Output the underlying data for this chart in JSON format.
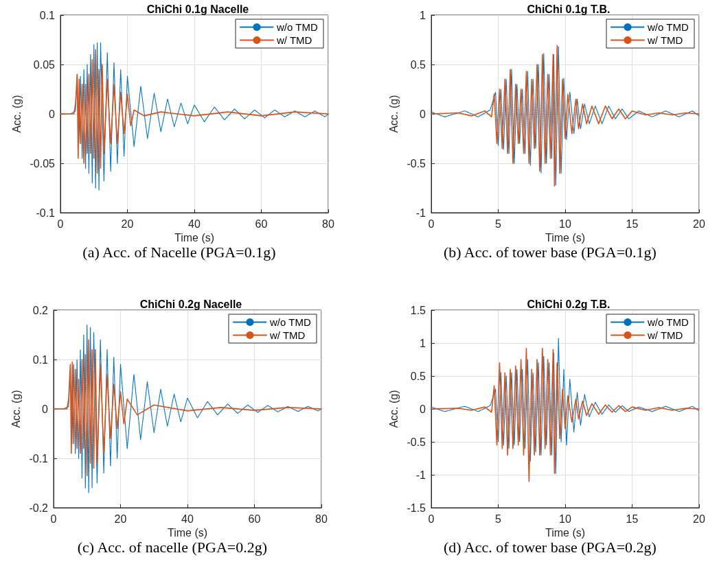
{
  "chart_data": [
    {
      "type": "line",
      "title": "ChiChi 0.1g Nacelle",
      "xlabel": "Time (s)",
      "ylabel": "Acc. (g)",
      "annotations": [
        "(a) Acc. of Nacelle (PGA=0.1g)"
      ],
      "xlim": [
        0,
        80
      ],
      "xticks": [
        0,
        20,
        40,
        60,
        80
      ],
      "ylim": [
        -0.1,
        0.1
      ],
      "yticks": [
        -0.1,
        -0.05,
        0,
        0.05,
        0.1
      ],
      "grid": true,
      "legend": "top right",
      "marker": "none",
      "series": [
        {
          "name": "w/o TMD",
          "color": "#0072bd",
          "line_style": "dotted",
          "x": [
            0,
            3,
            4.5,
            5,
            5.5,
            6,
            6.5,
            7,
            7.5,
            8,
            8.5,
            9,
            9.5,
            10,
            10.5,
            11,
            11.5,
            12,
            13,
            14,
            15,
            16,
            17,
            18,
            19,
            20,
            22,
            24,
            26,
            28,
            30,
            32,
            34,
            36,
            38,
            40,
            43,
            46,
            49,
            52,
            55,
            58,
            61,
            64,
            67,
            70,
            73,
            76,
            79,
            80
          ],
          "values": [
            0,
            0,
            0.003,
            0.04,
            -0.03,
            0.038,
            -0.045,
            0.045,
            -0.055,
            0.05,
            -0.06,
            0.06,
            -0.07,
            0.07,
            -0.075,
            0.072,
            -0.077,
            0.072,
            -0.068,
            0.062,
            -0.058,
            0.052,
            -0.05,
            0.045,
            -0.043,
            0.038,
            -0.033,
            0.028,
            -0.025,
            0.021,
            -0.018,
            0.015,
            -0.013,
            0.011,
            -0.01,
            0.009,
            -0.008,
            0.007,
            -0.006,
            0.005,
            -0.005,
            0.004,
            -0.004,
            0.004,
            -0.003,
            0.003,
            -0.003,
            0.003,
            -0.003,
            0
          ]
        },
        {
          "name": "w/ TMD",
          "color": "#d95319",
          "line_style": "solid",
          "x": [
            0,
            4,
            4.5,
            5,
            5.3,
            5.6,
            6,
            6.5,
            7,
            7.5,
            8,
            8.5,
            9,
            9.5,
            10,
            10.5,
            11,
            11.5,
            12,
            12.5,
            13,
            14,
            15,
            16,
            17,
            18,
            19,
            20,
            21,
            22,
            25,
            30,
            40,
            50,
            60,
            70,
            80
          ],
          "values": [
            0,
            0,
            0.01,
            0.04,
            -0.045,
            0.035,
            -0.03,
            0.03,
            -0.05,
            0.03,
            -0.04,
            0.04,
            -0.04,
            0.055,
            -0.045,
            0.065,
            -0.06,
            0.045,
            -0.055,
            0.05,
            -0.04,
            0.035,
            -0.03,
            0.03,
            -0.03,
            0.022,
            -0.02,
            0.02,
            -0.012,
            0.004,
            -0.002,
            0.002,
            -0.002,
            0.002,
            -0.002,
            0.002,
            0
          ]
        }
      ]
    },
    {
      "type": "line",
      "title": "ChiChi 0.1g T.B.",
      "xlabel": "Time (s)",
      "ylabel": "Acc. (g)",
      "annotations": [
        "(b) Acc. of tower base (PGA=0.1g)"
      ],
      "xlim": [
        0,
        20
      ],
      "xticks": [
        0,
        5,
        10,
        15,
        20
      ],
      "ylim": [
        -1,
        1
      ],
      "yticks": [
        -1,
        -0.5,
        0,
        0.5,
        1
      ],
      "grid": true,
      "legend": "top right",
      "marker": "none",
      "series": [
        {
          "name": "w/o TMD",
          "color": "#0072bd",
          "line_style": "dotted",
          "x": [
            0,
            1,
            2.5,
            3.5,
            4.4,
            4.8,
            5.0,
            5.2,
            5.4,
            5.6,
            5.8,
            6.0,
            6.2,
            6.4,
            6.6,
            6.8,
            7.0,
            7.2,
            7.4,
            7.6,
            7.8,
            8.0,
            8.2,
            8.4,
            8.6,
            8.8,
            9.0,
            9.15,
            9.3,
            9.5,
            9.7,
            9.9,
            10.1,
            10.35,
            10.65,
            10.9,
            11.15,
            11.45,
            11.8,
            12.25,
            12.75,
            13.25,
            13.75,
            14.25,
            14.75,
            15.5,
            16.5,
            17.5,
            18.5,
            19.5,
            20
          ],
          "values": [
            0.02,
            -0.03,
            0.03,
            -0.03,
            0.04,
            0.22,
            -0.32,
            0.25,
            -0.36,
            0.35,
            -0.4,
            0.45,
            -0.5,
            0.3,
            -0.3,
            0.25,
            -0.4,
            0.43,
            -0.52,
            0.35,
            -0.35,
            0.5,
            -0.6,
            0.61,
            -0.5,
            0.4,
            -0.45,
            0.6,
            -0.72,
            0.68,
            -0.6,
            0.36,
            -0.26,
            0.22,
            -0.2,
            0.15,
            -0.15,
            0.1,
            -0.1,
            0.08,
            -0.1,
            0.08,
            -0.05,
            0.05,
            -0.05,
            0.03,
            -0.03,
            0.03,
            -0.03,
            0.03,
            -0.02
          ]
        },
        {
          "name": "w/ TMD",
          "color": "#d95319",
          "line_style": "solid",
          "x": [
            0,
            2,
            3,
            4,
            4.5,
            4.7,
            4.9,
            5.1,
            5.3,
            5.5,
            5.7,
            5.9,
            6.1,
            6.3,
            6.5,
            6.7,
            6.9,
            7.1,
            7.3,
            7.5,
            7.7,
            7.9,
            8.1,
            8.3,
            8.5,
            8.7,
            8.9,
            9.1,
            9.2,
            9.4,
            9.6,
            9.8,
            10,
            10.2,
            10.5,
            10.8,
            11,
            11.3,
            11.6,
            12,
            12.5,
            13,
            13.5,
            14,
            14.5,
            15,
            16,
            17,
            18,
            19,
            20
          ],
          "values": [
            0,
            0.01,
            -0.02,
            0.03,
            -0.03,
            0.2,
            -0.3,
            0.25,
            -0.35,
            0.35,
            -0.4,
            0.45,
            -0.5,
            0.3,
            -0.3,
            0.25,
            -0.4,
            0.43,
            -0.5,
            0.35,
            -0.35,
            0.5,
            -0.58,
            0.6,
            -0.5,
            0.4,
            -0.45,
            0.6,
            -0.73,
            0.69,
            -0.6,
            0.35,
            -0.25,
            0.2,
            -0.2,
            0.15,
            -0.15,
            0.1,
            -0.1,
            0.08,
            -0.1,
            0.08,
            -0.05,
            0.05,
            -0.05,
            0.03,
            -0.01,
            0.01,
            -0.01,
            0.01,
            0
          ]
        }
      ]
    },
    {
      "type": "line",
      "title": "ChiChi 0.2g Nacelle",
      "xlabel": "Time (s)",
      "ylabel": "Acc. (g)",
      "annotations": [
        "(c) Acc. of nacelle (PGA=0.2g)"
      ],
      "xlim": [
        0,
        80
      ],
      "xticks": [
        0,
        20,
        40,
        60,
        80
      ],
      "ylim": [
        -0.2,
        0.2
      ],
      "yticks": [
        -0.2,
        -0.1,
        0,
        0.1,
        0.2
      ],
      "grid": true,
      "legend": "top right",
      "marker": "none",
      "series": [
        {
          "name": "w/o TMD",
          "color": "#0072bd",
          "line_style": "dotted",
          "x": [
            0,
            3,
            4.5,
            5,
            5.5,
            6,
            6.5,
            7,
            7.5,
            8,
            8.5,
            9,
            9.5,
            10,
            10.5,
            11,
            11.5,
            12,
            13,
            14,
            15,
            16,
            17,
            18,
            19,
            20,
            22,
            24,
            26,
            28,
            30,
            32,
            34,
            36,
            38,
            40,
            43,
            46,
            49,
            52,
            55,
            58,
            61,
            64,
            67,
            70,
            73,
            76,
            79,
            80
          ],
          "values": [
            0,
            0,
            0.005,
            0.08,
            -0.07,
            0.09,
            -0.09,
            0.1,
            -0.1,
            0.12,
            -0.14,
            0.15,
            -0.16,
            0.17,
            -0.17,
            0.165,
            -0.16,
            0.155,
            -0.15,
            0.14,
            -0.13,
            0.12,
            -0.115,
            0.105,
            -0.1,
            0.09,
            -0.08,
            0.07,
            -0.062,
            0.055,
            -0.048,
            0.04,
            -0.035,
            0.03,
            -0.026,
            0.022,
            -0.018,
            0.015,
            -0.012,
            0.01,
            -0.009,
            0.008,
            -0.007,
            0.007,
            -0.006,
            0.005,
            -0.005,
            0.005,
            -0.004,
            0
          ]
        },
        {
          "name": "w/ TMD",
          "color": "#d95319",
          "line_style": "solid",
          "x": [
            0,
            4,
            4.5,
            5,
            5.3,
            5.6,
            6,
            6.5,
            7,
            7.5,
            8,
            8.5,
            9,
            9.5,
            10,
            10.5,
            11,
            11.5,
            12,
            12.5,
            13,
            14,
            15,
            16,
            17,
            18,
            19,
            20,
            21,
            22,
            25,
            30,
            40,
            50,
            60,
            70,
            80
          ],
          "values": [
            0,
            0,
            0.02,
            0.09,
            -0.09,
            0.095,
            -0.07,
            0.08,
            -0.08,
            0.06,
            -0.09,
            0.1,
            -0.08,
            0.11,
            -0.135,
            0.14,
            -0.11,
            0.12,
            -0.12,
            0.12,
            -0.11,
            0.09,
            -0.09,
            0.07,
            -0.06,
            0.05,
            -0.04,
            0.035,
            -0.03,
            0.02,
            -0.012,
            0.008,
            -0.004,
            0.003,
            -0.003,
            0.003,
            0
          ]
        }
      ]
    },
    {
      "type": "line",
      "title": "ChiChi 0.2g T.B.",
      "xlabel": "Time (s)",
      "ylabel": "Acc. (g)",
      "annotations": [
        "(d) Acc. of tower base (PGA=0.2g)"
      ],
      "xlim": [
        0,
        20
      ],
      "xticks": [
        0,
        5,
        10,
        15,
        20
      ],
      "ylim": [
        -1.5,
        1.5
      ],
      "yticks": [
        -1.5,
        -1,
        -0.5,
        0,
        0.5,
        1,
        1.5
      ],
      "grid": true,
      "legend": "top right",
      "marker": "none",
      "series": [
        {
          "name": "w/o TMD",
          "color": "#0072bd",
          "line_style": "dotted",
          "x": [
            0,
            1,
            2.5,
            3.5,
            4.4,
            4.8,
            5.0,
            5.2,
            5.4,
            5.6,
            5.8,
            6.0,
            6.2,
            6.4,
            6.6,
            6.8,
            7.0,
            7.2,
            7.4,
            7.6,
            7.8,
            8.0,
            8.2,
            8.4,
            8.6,
            8.8,
            9.0,
            9.15,
            9.3,
            9.5,
            9.7,
            9.9,
            10.1,
            10.35,
            10.65,
            10.9,
            11.15,
            11.45,
            11.8,
            12.25,
            12.75,
            13.25,
            13.75,
            14.25,
            14.75,
            15.5,
            16.5,
            17.5,
            18.5,
            19.5,
            20
          ],
          "values": [
            0.03,
            -0.04,
            0.04,
            -0.04,
            0.05,
            0.3,
            -0.5,
            0.55,
            -0.55,
            0.5,
            -0.6,
            0.55,
            -0.55,
            0.6,
            -0.5,
            0.6,
            -0.6,
            0.75,
            -0.8,
            0.55,
            -0.65,
            0.7,
            -0.7,
            0.8,
            -0.55,
            0.7,
            -0.7,
            0.85,
            -0.98,
            1.07,
            -0.5,
            0.6,
            -0.55,
            0.45,
            -0.35,
            0.25,
            -0.25,
            0.22,
            -0.12,
            0.1,
            -0.08,
            0.06,
            -0.05,
            0.05,
            -0.04,
            0.03,
            -0.04,
            0.04,
            -0.04,
            0.04,
            -0.03
          ]
        },
        {
          "name": "w/ TMD",
          "color": "#d95319",
          "line_style": "solid",
          "x": [
            0,
            2,
            3,
            4,
            4.5,
            4.7,
            4.9,
            5.1,
            5.3,
            5.5,
            5.7,
            5.9,
            6.1,
            6.3,
            6.5,
            6.7,
            6.9,
            7.1,
            7.3,
            7.5,
            7.7,
            7.9,
            8.1,
            8.3,
            8.5,
            8.7,
            8.9,
            9.1,
            9.2,
            9.4,
            9.6,
            9.8,
            10,
            10.2,
            10.5,
            10.8,
            11,
            11.3,
            11.6,
            12,
            12.5,
            13,
            13.5,
            14,
            14.5,
            15,
            16,
            17,
            18,
            19,
            20
          ],
          "values": [
            0,
            0.01,
            -0.02,
            0.03,
            -0.05,
            0.35,
            -0.55,
            0.7,
            -0.6,
            0.55,
            -0.7,
            0.6,
            -0.6,
            0.65,
            -0.55,
            0.75,
            -0.7,
            0.92,
            -1.1,
            0.6,
            -0.7,
            0.75,
            -0.7,
            0.92,
            -0.6,
            0.75,
            -0.7,
            0.9,
            -0.98,
            0.7,
            -0.45,
            0.3,
            -0.3,
            0.2,
            -0.2,
            0.15,
            -0.15,
            0.12,
            -0.1,
            0.08,
            -0.08,
            0.06,
            -0.05,
            0.05,
            -0.04,
            0.03,
            -0.02,
            0.02,
            -0.02,
            0.01,
            0
          ]
        }
      ]
    }
  ]
}
